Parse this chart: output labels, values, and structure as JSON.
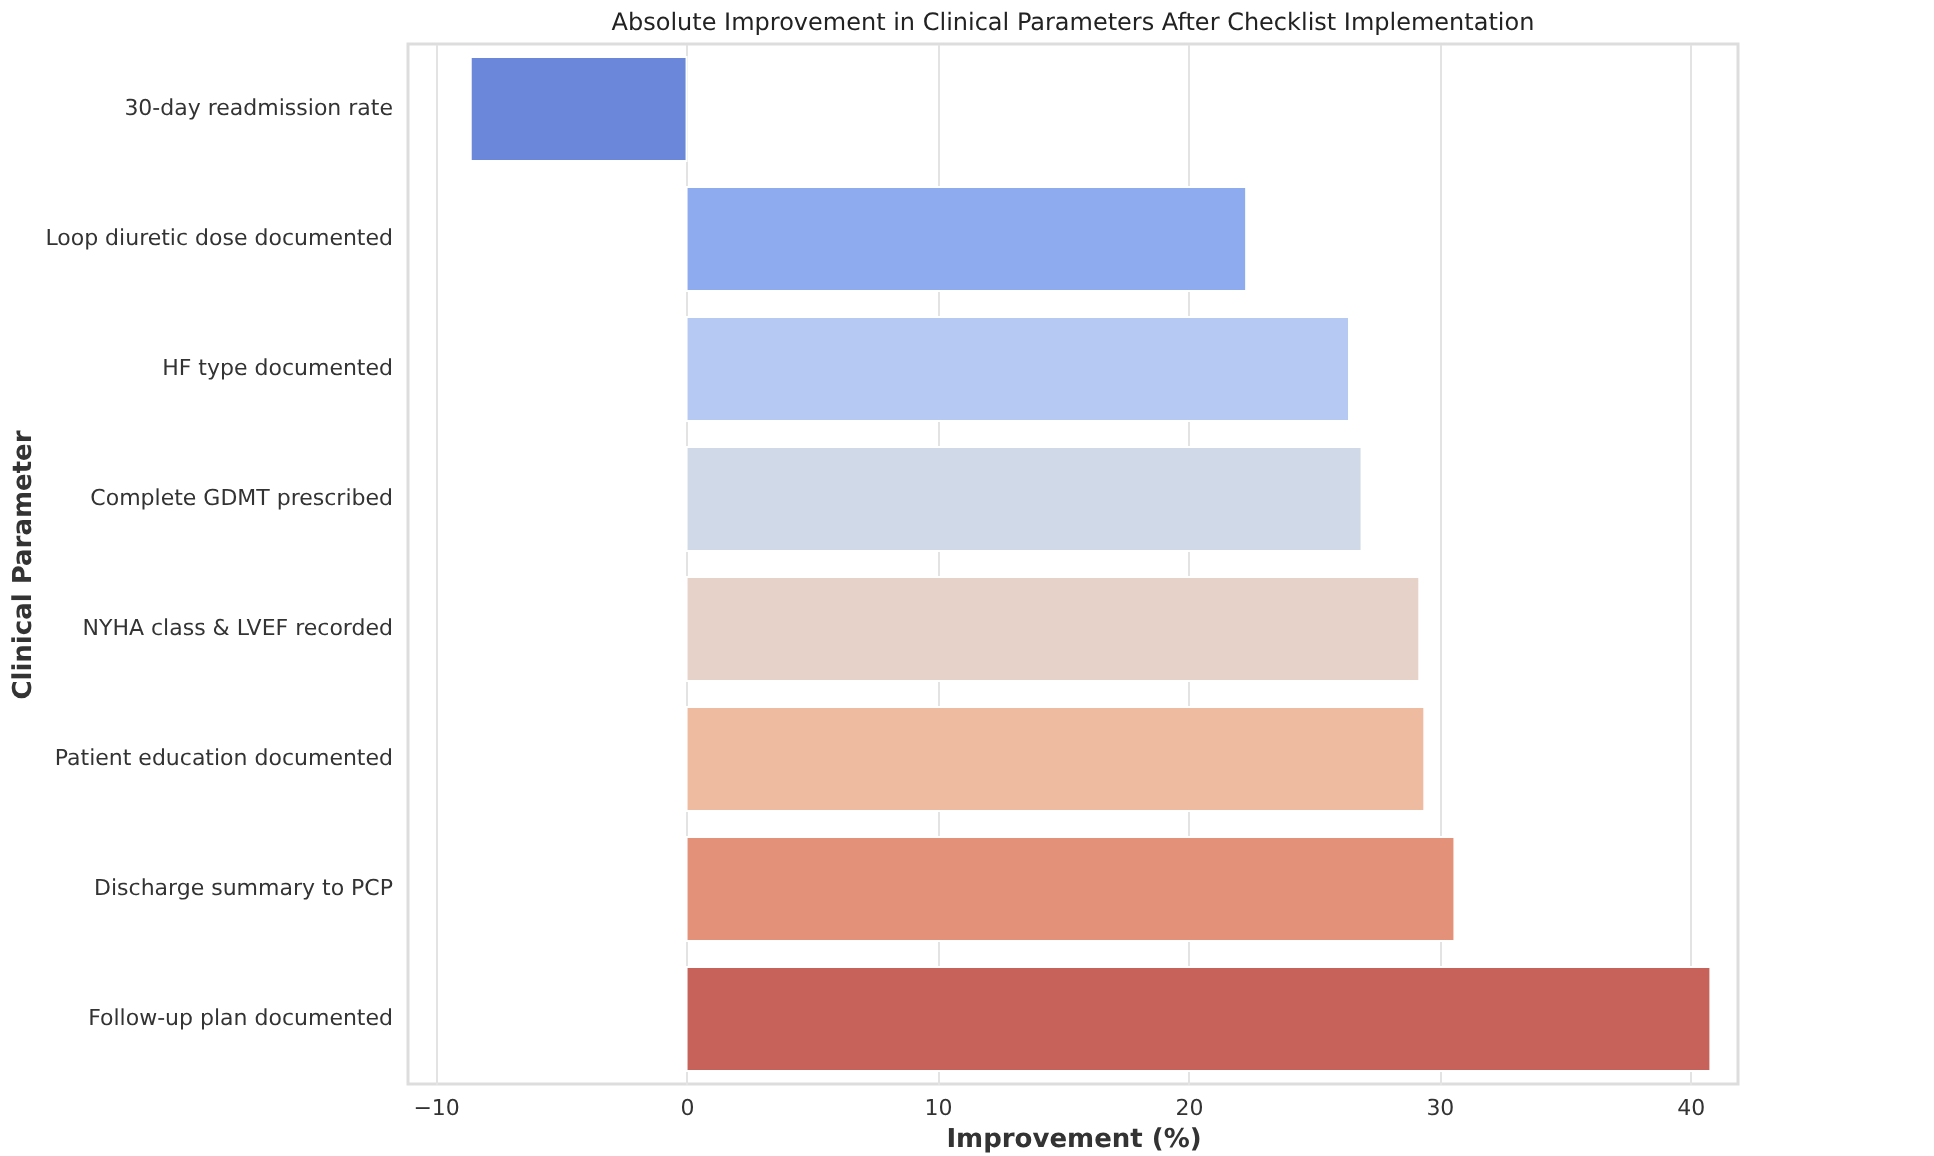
{
  "chart_data": {
    "type": "bar",
    "orientation": "horizontal",
    "title": "Absolute Improvement in Clinical Parameters After Checklist Implementation",
    "xlabel": "Improvement (%)",
    "ylabel": "Clinical Parameter",
    "categories": [
      "30-day readmission rate",
      "Loop diuretic dose documented",
      "HF type documented",
      "Complete GDMT prescribed",
      "NYHA class & LVEF recorded",
      "Patient education documented",
      "Discharge summary to PCP",
      "Follow-up plan documented"
    ],
    "values": [
      -8.6,
      22.3,
      26.4,
      26.9,
      29.2,
      29.4,
      30.6,
      40.8
    ],
    "colors": [
      "#6a87d9",
      "#8eabf0",
      "#b6c9f2",
      "#d0d9e8",
      "#e7d2ca",
      "#efbba0",
      "#e4917a",
      "#c7625a"
    ],
    "xlim": [
      -11.1,
      41.9
    ],
    "xticks": [
      {
        "value": -10,
        "label": "−10"
      },
      0,
      10,
      20,
      30,
      40
    ],
    "grid": "x"
  }
}
